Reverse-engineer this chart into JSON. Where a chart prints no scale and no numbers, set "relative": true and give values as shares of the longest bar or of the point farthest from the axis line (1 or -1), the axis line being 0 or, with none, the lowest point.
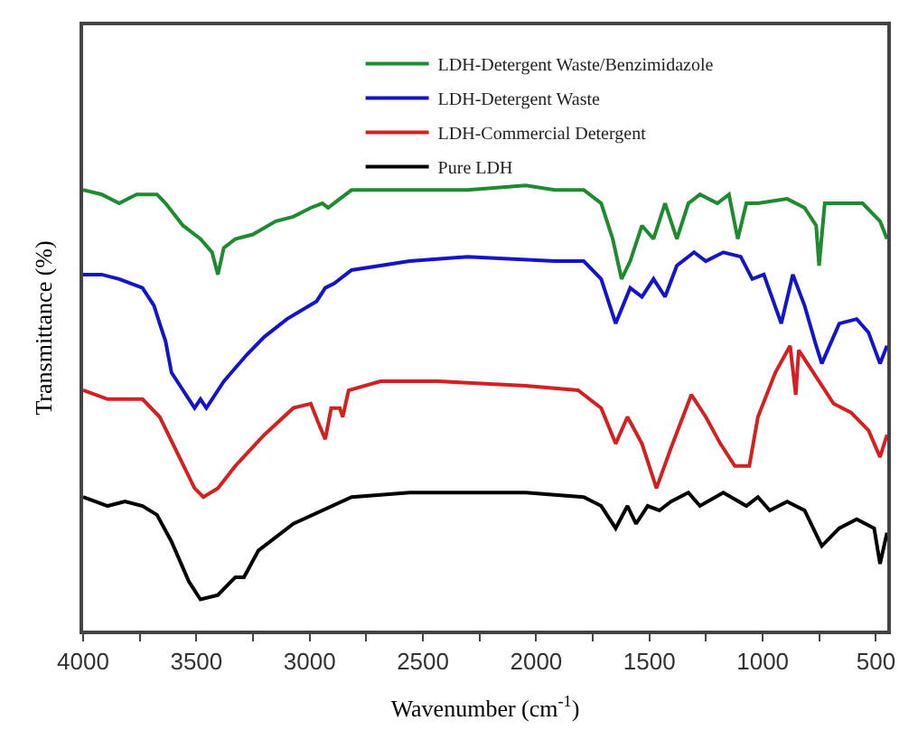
{
  "chart_data": {
    "type": "line",
    "relative": true,
    "xlabel": "Wavenumber (cm$^{-1}$)",
    "ylabel": "Transmittance (%)",
    "xlim": [
      4000,
      450
    ],
    "xticks": [
      4000,
      {
        "value": 3750,
        "label": null
      },
      3500,
      {
        "value": 3250,
        "label": null
      },
      3000,
      {
        "value": 2750,
        "label": null
      },
      2500,
      {
        "value": 2250,
        "label": null
      },
      2000,
      {
        "value": 1750,
        "label": null
      },
      1500,
      {
        "value": 1250,
        "label": null
      },
      1000,
      {
        "value": 750,
        "label": null
      },
      500
    ],
    "legend": "top",
    "marker": "none",
    "line_style": "solid",
    "series": [
      {
        "name": "LDH-Detergent Waste/Benzimidazole",
        "color": "#1f8a2e",
        "x": [
          4000,
          3918,
          3841,
          3764,
          3674,
          3636,
          3559,
          3482,
          3431,
          3405,
          3379,
          3328,
          3251,
          3149,
          3072,
          2995,
          2944,
          2918,
          2867,
          2815,
          2559,
          2303,
          2046,
          1918,
          1790,
          1713,
          1662,
          1623,
          1585,
          1533,
          1482,
          1431,
          1379,
          1328,
          1277,
          1200,
          1149,
          1110,
          1072,
          1021,
          892,
          815,
          764,
          751,
          726,
          636,
          559,
          482,
          451
        ],
        "values": [
          0.99,
          0.98,
          0.96,
          0.98,
          0.98,
          0.96,
          0.91,
          0.88,
          0.85,
          0.8,
          0.86,
          0.88,
          0.89,
          0.92,
          0.93,
          0.95,
          0.96,
          0.95,
          0.97,
          0.99,
          0.99,
          0.99,
          1.0,
          0.99,
          0.99,
          0.96,
          0.88,
          0.79,
          0.83,
          0.91,
          0.88,
          0.96,
          0.88,
          0.96,
          0.98,
          0.96,
          0.98,
          0.88,
          0.96,
          0.96,
          0.97,
          0.95,
          0.91,
          0.82,
          0.96,
          0.96,
          0.96,
          0.92,
          0.88
        ]
      },
      {
        "name": "LDH-Detergent Waste",
        "color": "#1414c8",
        "x": [
          4000,
          3918,
          3841,
          3738,
          3687,
          3662,
          3636,
          3610,
          3559,
          3508,
          3482,
          3456,
          3379,
          3277,
          3200,
          3100,
          2969,
          2931,
          2892,
          2815,
          2559,
          2303,
          1918,
          1790,
          1713,
          1649,
          1585,
          1533,
          1482,
          1431,
          1379,
          1303,
          1251,
          1174,
          1097,
          1046,
          995,
          918,
          867,
          815,
          764,
          739,
          662,
          585,
          533,
          482,
          451
        ],
        "values": [
          0.8,
          0.8,
          0.79,
          0.77,
          0.73,
          0.69,
          0.65,
          0.58,
          0.54,
          0.5,
          0.52,
          0.5,
          0.56,
          0.62,
          0.66,
          0.7,
          0.74,
          0.77,
          0.78,
          0.81,
          0.83,
          0.84,
          0.83,
          0.83,
          0.79,
          0.69,
          0.77,
          0.75,
          0.79,
          0.75,
          0.82,
          0.85,
          0.83,
          0.85,
          0.84,
          0.79,
          0.8,
          0.69,
          0.8,
          0.73,
          0.64,
          0.6,
          0.69,
          0.7,
          0.67,
          0.6,
          0.64
        ]
      },
      {
        "name": "LDH-Commercial Detergent",
        "color": "#d42020",
        "x": [
          4000,
          3892,
          3815,
          3738,
          3662,
          3585,
          3508,
          3469,
          3405,
          3328,
          3200,
          3072,
          2995,
          2956,
          2931,
          2905,
          2867,
          2854,
          2828,
          2687,
          2431,
          2046,
          1815,
          1713,
          1649,
          1597,
          1533,
          1469,
          1405,
          1315,
          1251,
          1187,
          1123,
          1059,
          1021,
          944,
          879,
          854,
          841,
          764,
          687,
          610,
          533,
          482,
          451
        ],
        "values": [
          0.54,
          0.52,
          0.52,
          0.52,
          0.48,
          0.4,
          0.32,
          0.3,
          0.32,
          0.37,
          0.44,
          0.5,
          0.51,
          0.46,
          0.43,
          0.5,
          0.5,
          0.48,
          0.54,
          0.56,
          0.56,
          0.55,
          0.54,
          0.5,
          0.42,
          0.48,
          0.42,
          0.32,
          0.41,
          0.53,
          0.48,
          0.42,
          0.37,
          0.37,
          0.48,
          0.58,
          0.64,
          0.53,
          0.63,
          0.57,
          0.51,
          0.49,
          0.45,
          0.39,
          0.44
        ]
      },
      {
        "name": "Pure LDH",
        "color": "#000000",
        "x": [
          4000,
          3892,
          3815,
          3738,
          3674,
          3610,
          3533,
          3482,
          3405,
          3328,
          3290,
          3226,
          3072,
          2815,
          2559,
          2046,
          1790,
          1713,
          1649,
          1597,
          1559,
          1508,
          1456,
          1405,
          1328,
          1277,
          1174,
          1072,
          1021,
          969,
          892,
          815,
          739,
          662,
          585,
          508,
          482,
          451
        ],
        "values": [
          0.3,
          0.28,
          0.29,
          0.28,
          0.26,
          0.2,
          0.11,
          0.07,
          0.08,
          0.12,
          0.12,
          0.18,
          0.24,
          0.3,
          0.31,
          0.31,
          0.3,
          0.28,
          0.23,
          0.28,
          0.24,
          0.28,
          0.27,
          0.29,
          0.31,
          0.28,
          0.31,
          0.28,
          0.3,
          0.27,
          0.29,
          0.27,
          0.19,
          0.23,
          0.25,
          0.23,
          0.15,
          0.22
        ]
      }
    ]
  }
}
